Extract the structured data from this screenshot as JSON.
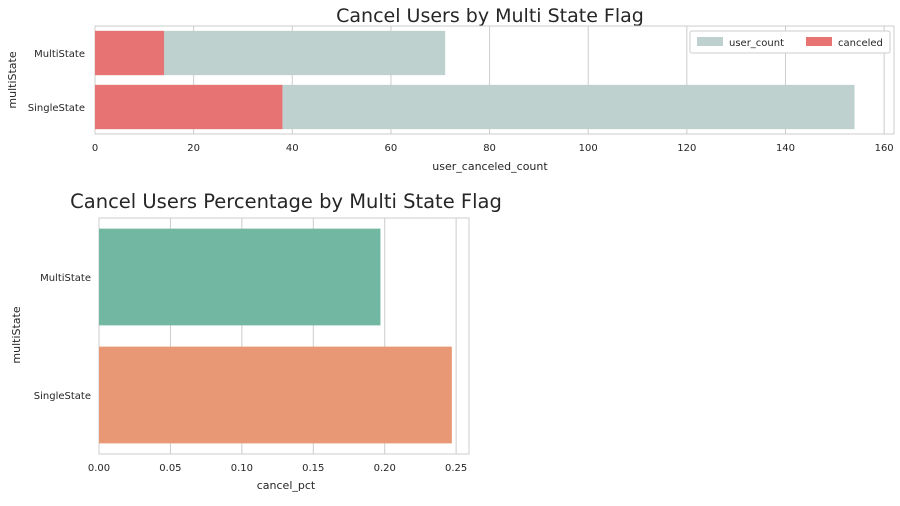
{
  "chart_data": [
    {
      "type": "bar",
      "orientation": "horizontal",
      "stacked": "overlay",
      "title": "Cancel Users by Multi State Flag",
      "xlabel": "user_canceled_count",
      "ylabel": "multiState",
      "categories": [
        "MultiState",
        "SingleState"
      ],
      "series": [
        {
          "name": "user_count",
          "values": [
            71,
            154
          ],
          "color": "#bed1cf"
        },
        {
          "name": "canceled",
          "values": [
            14,
            38
          ],
          "color": "#e87373"
        }
      ],
      "xlim": [
        0,
        162
      ],
      "xticks": [
        0,
        20,
        40,
        60,
        80,
        100,
        120,
        140,
        160
      ],
      "grid": true,
      "legend": "top-right"
    },
    {
      "type": "bar",
      "orientation": "horizontal",
      "title": "Cancel Users Percentage by Multi State Flag",
      "xlabel": "cancel_pct",
      "ylabel": "multiState",
      "categories": [
        "MultiState",
        "SingleState"
      ],
      "values": [
        0.197,
        0.247
      ],
      "colors": [
        "#72b7a1",
        "#e99875"
      ],
      "xlim": [
        0,
        0.259
      ],
      "xticks": [
        "0.00",
        "0.05",
        "0.10",
        "0.15",
        "0.20",
        "0.25"
      ],
      "grid": true
    }
  ]
}
